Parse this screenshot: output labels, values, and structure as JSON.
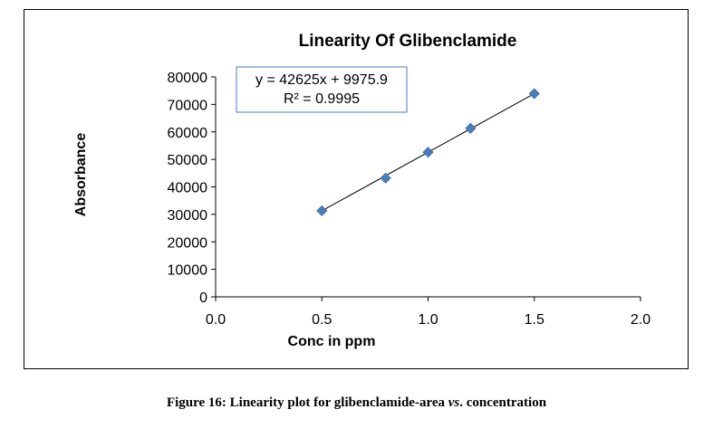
{
  "chart_data": {
    "type": "scatter",
    "title": "Linearity Of Glibenclamide",
    "xlabel": "Conc in ppm",
    "ylabel": "Absorbance",
    "xlim": [
      0,
      2.0
    ],
    "ylim": [
      0,
      80000
    ],
    "x_ticks": [
      "0.0",
      "0.5",
      "1.0",
      "1.5",
      "2.0"
    ],
    "y_ticks": [
      "0",
      "10000",
      "20000",
      "30000",
      "40000",
      "50000",
      "60000",
      "70000",
      "80000"
    ],
    "series": [
      {
        "points": [
          {
            "x": 0.5,
            "y": 31300
          },
          {
            "x": 0.8,
            "y": 43200
          },
          {
            "x": 1.0,
            "y": 52600
          },
          {
            "x": 1.2,
            "y": 61300
          },
          {
            "x": 1.5,
            "y": 73900
          }
        ],
        "marker_color": "#4a7ebb"
      }
    ],
    "trendline": {
      "slope": 42625,
      "intercept": 9975.9,
      "x_range": [
        0.5,
        1.5
      ],
      "equation": "y = 42625x + 9975.9",
      "r_squared": "R² = 0.9995"
    },
    "grid": false,
    "legend": "none"
  },
  "caption": {
    "prefix": "Figure 16: Linearity plot for glibenclamide-area ",
    "italic": "vs",
    "suffix": ". concentration"
  }
}
